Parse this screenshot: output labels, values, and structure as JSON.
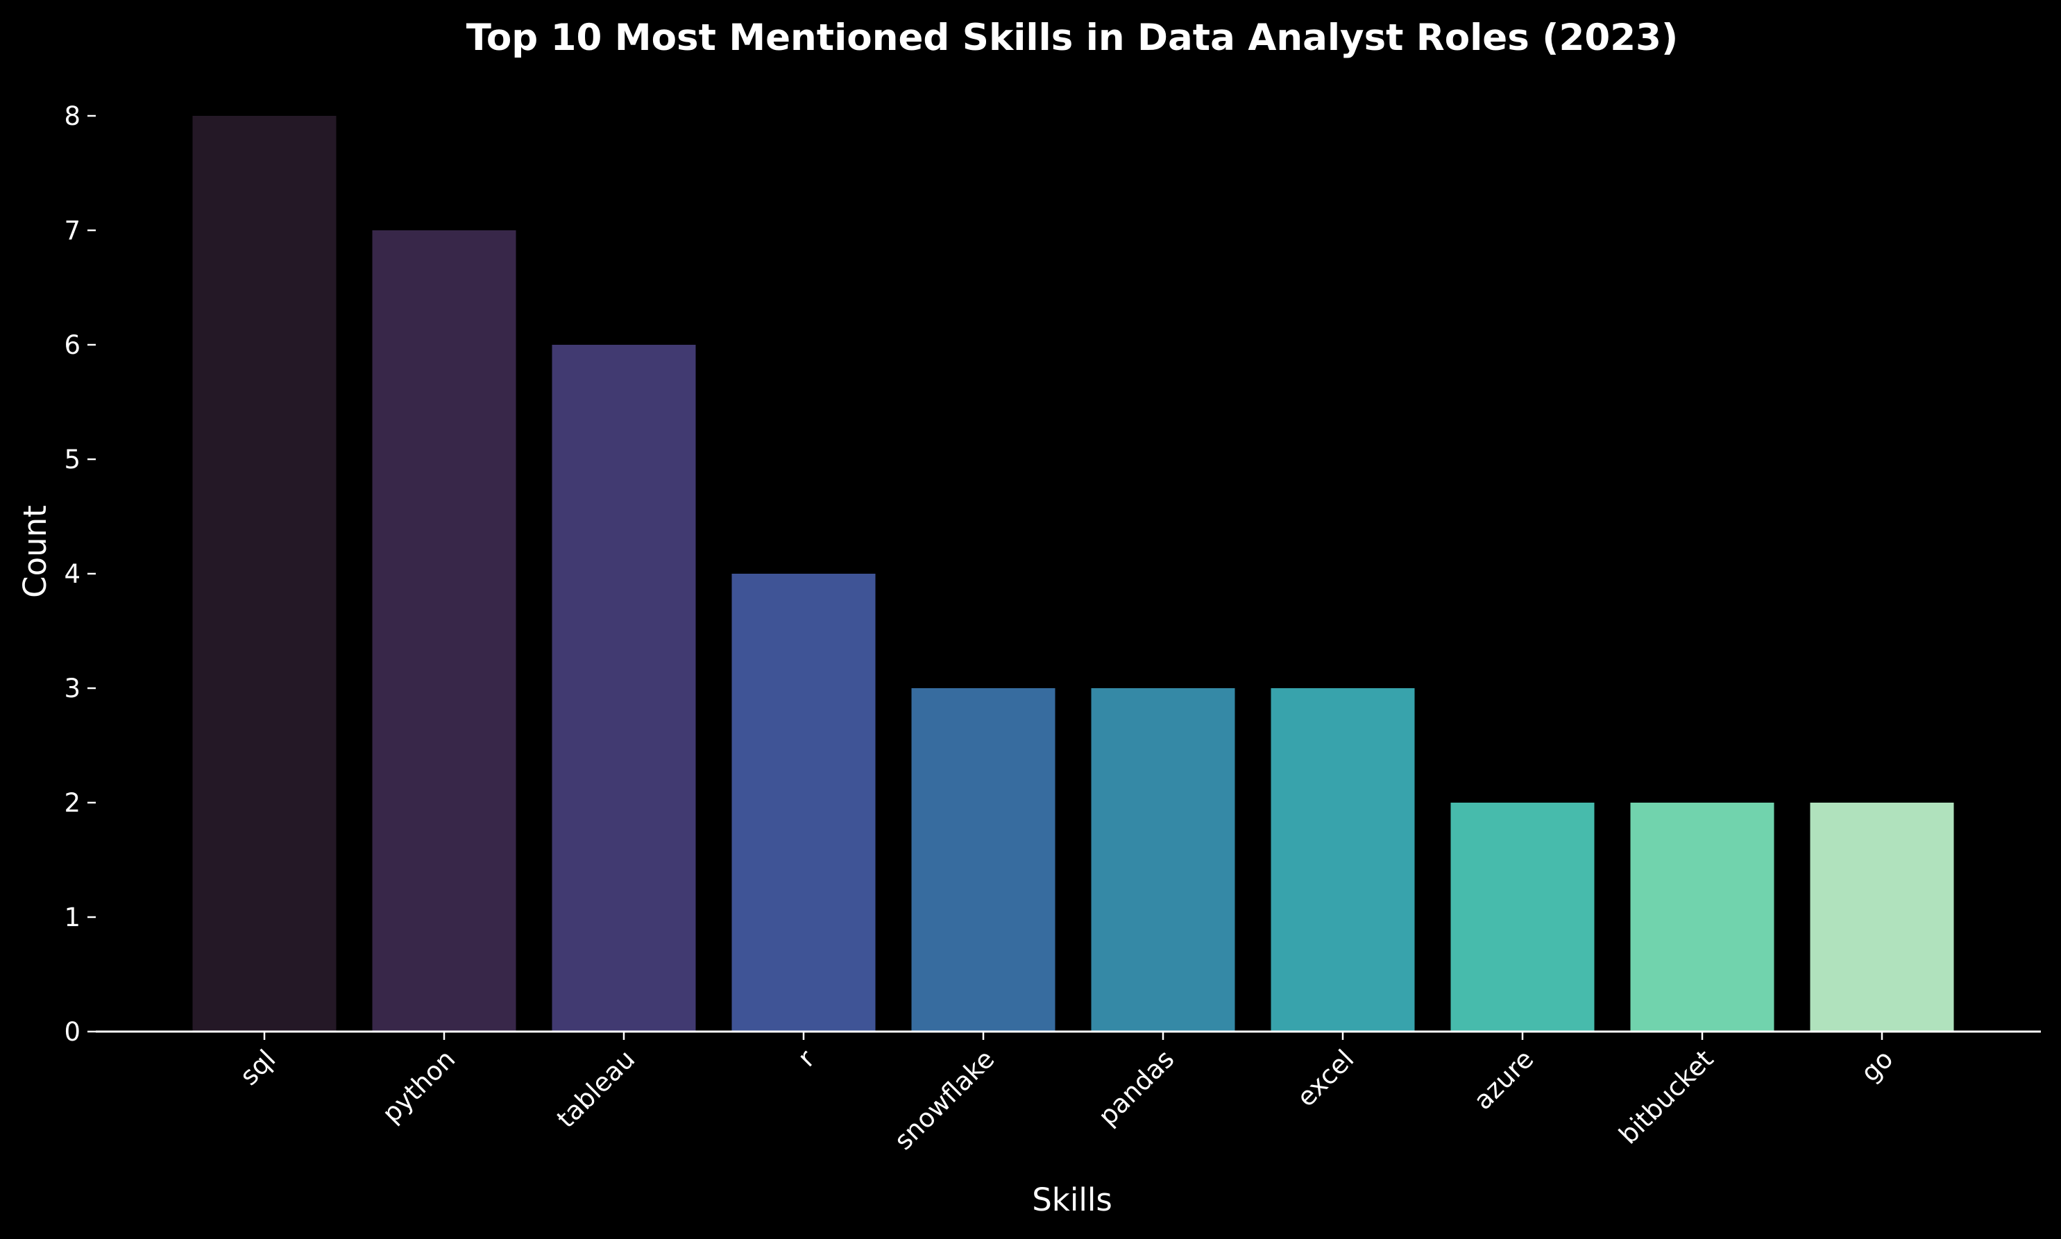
{
  "chart_data": {
    "type": "bar",
    "title": "Top 10 Most Mentioned Skills in Data Analyst Roles (2023)",
    "xlabel": "Skills",
    "ylabel": "Count",
    "categories": [
      "sql",
      "python",
      "tableau",
      "r",
      "snowflake",
      "pandas",
      "excel",
      "azure",
      "bitbucket",
      "go"
    ],
    "values": [
      8,
      7,
      6,
      4,
      3,
      3,
      3,
      2,
      2,
      2
    ],
    "colors": [
      "#241826",
      "#382749",
      "#413a71",
      "#3f5496",
      "#376c9f",
      "#3589a6",
      "#38a3ac",
      "#47bbac",
      "#71d3ad",
      "#b0e2bd"
    ],
    "yticks": [
      "0",
      "1",
      "2",
      "3",
      "4",
      "5",
      "6",
      "7",
      "8"
    ],
    "ylim": [
      0,
      8.4
    ],
    "grid": false,
    "legend": "none",
    "background": "#000000",
    "text_color": "#ffffff"
  }
}
